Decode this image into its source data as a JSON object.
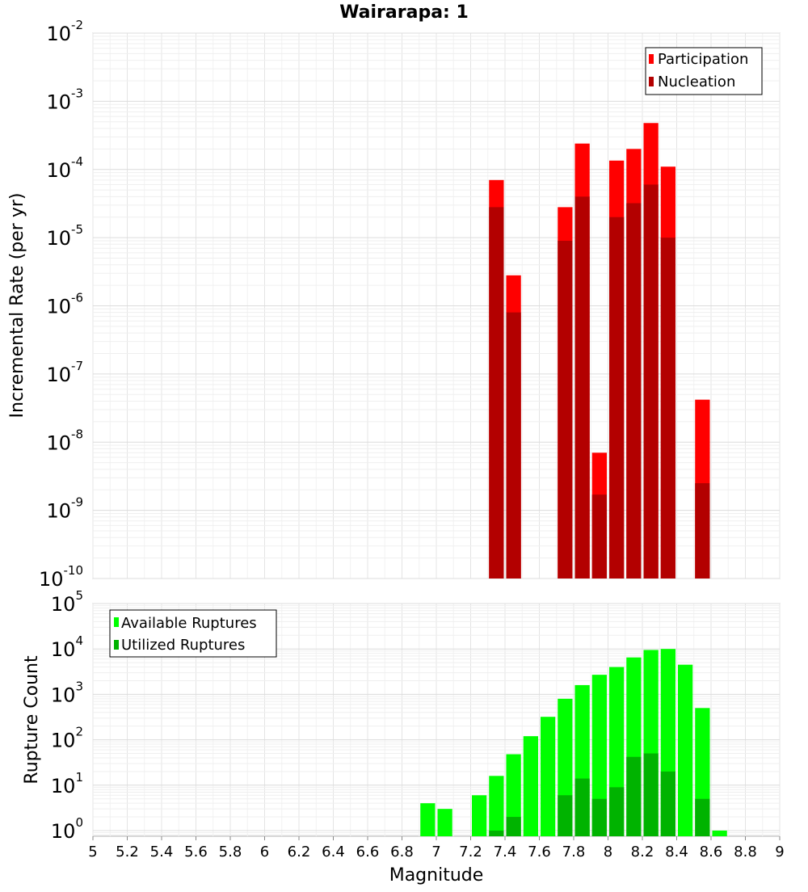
{
  "title": "Wairarapa: 1",
  "chart_data": [
    {
      "type": "bar",
      "title": "Wairarapa: 1",
      "xlabel": "",
      "ylabel": "Incremental Rate (per yr)",
      "xlim": [
        5,
        9
      ],
      "ylim": [
        1e-10,
        0.01
      ],
      "y_scale": "log",
      "y_tick_exponents": [
        "-2",
        "-3",
        "-4",
        "-5",
        "-6",
        "-7",
        "-8",
        "-9",
        "-10"
      ],
      "grid": true,
      "legend_position": "top-right",
      "bar_width": 0.1,
      "series": [
        {
          "name": "Participation",
          "color": "#ff0000",
          "x": [
            7.35,
            7.45,
            7.75,
            7.85,
            7.95,
            8.05,
            8.15,
            8.25,
            8.35,
            8.55
          ],
          "values": [
            7e-05,
            2.8e-06,
            2.8e-05,
            0.00024,
            7e-09,
            0.000135,
            0.0002,
            0.00048,
            0.00011,
            4.2e-08
          ]
        },
        {
          "name": "Nucleation",
          "color": "#b30000",
          "x": [
            7.35,
            7.45,
            7.75,
            7.85,
            7.95,
            8.05,
            8.15,
            8.25,
            8.35,
            8.55
          ],
          "values": [
            2.8e-05,
            8e-07,
            9e-06,
            4e-05,
            1.7e-09,
            2e-05,
            3.2e-05,
            6e-05,
            1e-05,
            2.5e-09
          ]
        }
      ]
    },
    {
      "type": "bar",
      "title": "",
      "xlabel": "Magnitude",
      "ylabel": "Rupture Count",
      "xlim": [
        5,
        9
      ],
      "ylim": [
        0.75,
        100000
      ],
      "y_scale": "log",
      "y_tick_exponents": [
        "5",
        "4",
        "3",
        "2",
        "1",
        "0"
      ],
      "x_ticks": [
        "5",
        "5.2",
        "5.4",
        "5.6",
        "5.8",
        "6",
        "6.2",
        "6.4",
        "6.6",
        "6.8",
        "7",
        "7.2",
        "7.4",
        "7.6",
        "7.8",
        "8",
        "8.2",
        "8.4",
        "8.6",
        "8.8",
        "9"
      ],
      "grid": true,
      "legend_position": "top-left",
      "bar_width": 0.1,
      "series": [
        {
          "name": "Available Ruptures",
          "color": "#00ff00",
          "x": [
            6.95,
            7.05,
            7.25,
            7.35,
            7.45,
            7.55,
            7.65,
            7.75,
            7.85,
            7.95,
            8.05,
            8.15,
            8.25,
            8.35,
            8.45,
            8.55,
            8.65
          ],
          "values": [
            4,
            3,
            6,
            16,
            48,
            120,
            320,
            800,
            1600,
            2700,
            4000,
            6500,
            9500,
            10000,
            4500,
            500,
            1
          ]
        },
        {
          "name": "Utilized Ruptures",
          "color": "#00b300",
          "x": [
            7.35,
            7.45,
            7.75,
            7.85,
            7.95,
            8.05,
            8.15,
            8.25,
            8.35,
            8.55
          ],
          "values": [
            1,
            2,
            6,
            14,
            5,
            9,
            42,
            50,
            20,
            5
          ]
        }
      ]
    }
  ]
}
